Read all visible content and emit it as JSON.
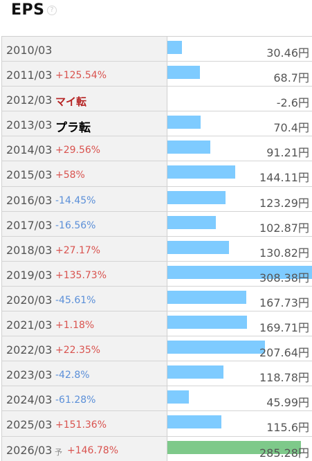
{
  "header": {
    "title": "EPS",
    "help_glyph": "?"
  },
  "rows": [
    {
      "year": "2010/03",
      "change": "",
      "change_type": "",
      "value": "30.46円",
      "fraction": 0.0988
    },
    {
      "year": "2011/03",
      "change": "+125.54%",
      "change_type": "up",
      "value": "68.7円",
      "fraction": 0.2228
    },
    {
      "year": "2012/03",
      "change": "マイ転",
      "change_type": "turn-neg",
      "value": "-2.6円",
      "fraction": 0
    },
    {
      "year": "2013/03",
      "change": "プラ転",
      "change_type": "turn-pos",
      "value": "70.4円",
      "fraction": 0.2283
    },
    {
      "year": "2014/03",
      "change": "+29.56%",
      "change_type": "up",
      "value": "91.21円",
      "fraction": 0.2958
    },
    {
      "year": "2015/03",
      "change": "+58%",
      "change_type": "up",
      "value": "144.11円",
      "fraction": 0.4673
    },
    {
      "year": "2016/03",
      "change": "-14.45%",
      "change_type": "down",
      "value": "123.29円",
      "fraction": 0.3998
    },
    {
      "year": "2017/03",
      "change": "-16.56%",
      "change_type": "down",
      "value": "102.87円",
      "fraction": 0.3336
    },
    {
      "year": "2018/03",
      "change": "+27.17%",
      "change_type": "up",
      "value": "130.82円",
      "fraction": 0.4242
    },
    {
      "year": "2019/03",
      "change": "+135.73%",
      "change_type": "up",
      "value": "308.38円",
      "fraction": 1.0
    },
    {
      "year": "2020/03",
      "change": "-45.61%",
      "change_type": "down",
      "value": "167.73円",
      "fraction": 0.5439
    },
    {
      "year": "2021/03",
      "change": "+1.18%",
      "change_type": "up",
      "value": "169.71円",
      "fraction": 0.5503
    },
    {
      "year": "2022/03",
      "change": "+22.35%",
      "change_type": "up",
      "value": "207.64円",
      "fraction": 0.6733
    },
    {
      "year": "2023/03",
      "change": "-42.8%",
      "change_type": "down",
      "value": "118.78円",
      "fraction": 0.3852
    },
    {
      "year": "2024/03",
      "change": "-61.28%",
      "change_type": "down",
      "value": "45.99円",
      "fraction": 0.1491
    },
    {
      "year": "2025/03",
      "change": "+151.36%",
      "change_type": "up",
      "value": "115.6円",
      "fraction": 0.3749
    },
    {
      "year": "2026/03",
      "forecast_mark": "予",
      "change": "+146.78%",
      "change_type": "up",
      "value": "285.28円",
      "fraction": 0.9251,
      "forecast": true
    }
  ],
  "colors": {
    "bar": "#7ecbff",
    "forecast_bar": "#7ec98a",
    "up": "#d9534f",
    "down": "#5b8fd8",
    "turn_neg": "#b52222"
  }
}
